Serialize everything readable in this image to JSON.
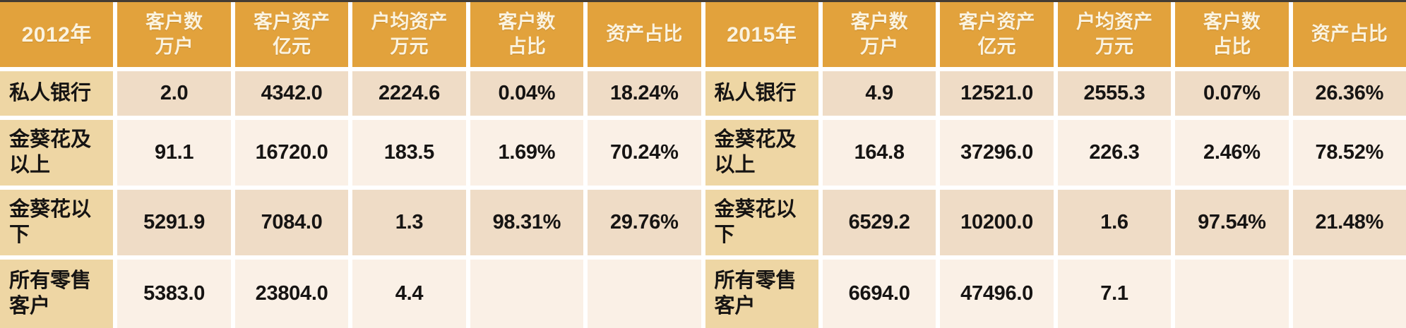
{
  "colors": {
    "top_strip": "#443c33",
    "gap": "#ffffff",
    "header_bg": "#e2a23c",
    "header_text": "#fbf3e0",
    "label_bg": "#eed6a4",
    "row_odd_bg": "#efdcc6",
    "row_even_bg": "#faf0e6",
    "text": "#161413"
  },
  "table": {
    "halves": [
      {
        "year_label": "2012年",
        "columns": [
          "客户数\n万户",
          "客户资产\n亿元",
          "户均资产\n万元",
          "客户数\n占比",
          "资产占比"
        ],
        "rows": [
          {
            "label": "私人银行",
            "values": [
              "2.0",
              "4342.0",
              "2224.6",
              "0.04%",
              "18.24%"
            ]
          },
          {
            "label": "金葵花及\n以上",
            "values": [
              "91.1",
              "16720.0",
              "183.5",
              "1.69%",
              "70.24%"
            ]
          },
          {
            "label": "金葵花以\n下",
            "values": [
              "5291.9",
              "7084.0",
              "1.3",
              "98.31%",
              "29.76%"
            ]
          },
          {
            "label": "所有零售\n客户",
            "values": [
              "5383.0",
              "23804.0",
              "4.4",
              "",
              ""
            ]
          }
        ]
      },
      {
        "year_label": "2015年",
        "columns": [
          "客户数\n万户",
          "客户资产\n亿元",
          "户均资产\n万元",
          "客户数\n占比",
          "资产占比"
        ],
        "rows": [
          {
            "label": "私人银行",
            "values": [
              "4.9",
              "12521.0",
              "2555.3",
              "0.07%",
              "26.36%"
            ]
          },
          {
            "label": "金葵花及\n以上",
            "values": [
              "164.8",
              "37296.0",
              "226.3",
              "2.46%",
              "78.52%"
            ]
          },
          {
            "label": "金葵花以\n下",
            "values": [
              "6529.2",
              "10200.0",
              "1.6",
              "97.54%",
              "21.48%"
            ]
          },
          {
            "label": "所有零售\n客户",
            "values": [
              "6694.0",
              "47496.0",
              "7.1",
              "",
              ""
            ]
          }
        ]
      }
    ]
  },
  "chart_data": {
    "type": "table",
    "tables": [
      {
        "title": "2012年",
        "columns": [
          "客户数 万户",
          "客户资产 亿元",
          "户均资产 万元",
          "客户数 占比",
          "资产占比"
        ],
        "row_labels": [
          "私人银行",
          "金葵花及以上",
          "金葵花以下",
          "所有零售客户"
        ],
        "rows": [
          [
            2.0,
            4342.0,
            2224.6,
            "0.04%",
            "18.24%"
          ],
          [
            91.1,
            16720.0,
            183.5,
            "1.69%",
            "70.24%"
          ],
          [
            5291.9,
            7084.0,
            1.3,
            "98.31%",
            "29.76%"
          ],
          [
            5383.0,
            23804.0,
            4.4,
            null,
            null
          ]
        ]
      },
      {
        "title": "2015年",
        "columns": [
          "客户数 万户",
          "客户资产 亿元",
          "户均资产 万元",
          "客户数 占比",
          "资产占比"
        ],
        "row_labels": [
          "私人银行",
          "金葵花及以上",
          "金葵花以下",
          "所有零售客户"
        ],
        "rows": [
          [
            4.9,
            12521.0,
            2555.3,
            "0.07%",
            "26.36%"
          ],
          [
            164.8,
            37296.0,
            226.3,
            "2.46%",
            "78.52%"
          ],
          [
            6529.2,
            10200.0,
            1.6,
            "97.54%",
            "21.48%"
          ],
          [
            6694.0,
            47496.0,
            7.1,
            null,
            null
          ]
        ]
      }
    ],
    "layout": {
      "grid": "12 equal columns, white gaps",
      "header_position": "top row per half"
    }
  }
}
